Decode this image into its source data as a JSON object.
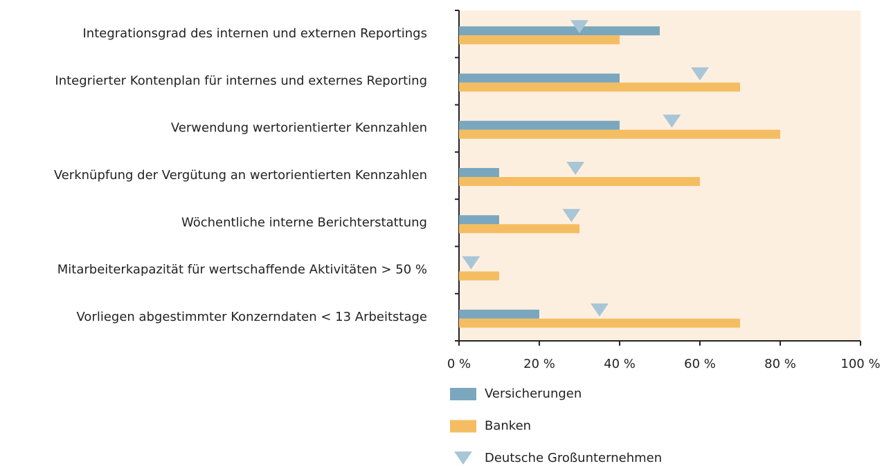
{
  "chart_data": {
    "type": "bar",
    "orientation": "horizontal",
    "categories": [
      "Integrationsgrad des internen und externen Reportings",
      "Integrierter Kontenplan für internes und externes Reporting",
      "Verwendung wertorientierter Kennzahlen",
      "Verknüpfung der Vergütung an wertorientierten Kennzahlen",
      "Wöchentliche interne Berichterstattung",
      "Mitarbeiterkapazität für wertschaffende Aktivitäten > 50 %",
      "Vorliegen abgestimmter Konzerndaten < 13 Arbeitstage"
    ],
    "series": [
      {
        "name": "Versicherungen",
        "type": "bar",
        "color": "#7aa7bd",
        "values": [
          50,
          40,
          40,
          10,
          10,
          0,
          20
        ]
      },
      {
        "name": "Banken",
        "type": "bar",
        "color": "#f5bd62",
        "values": [
          40,
          70,
          80,
          60,
          30,
          10,
          70
        ]
      },
      {
        "name": "Deutsche Großunternehmen",
        "type": "triangle",
        "color": "#a9c6d7",
        "values": [
          30,
          60,
          53,
          29,
          28,
          3,
          35
        ]
      }
    ],
    "xlim": [
      0,
      100
    ],
    "xticks": [
      {
        "value": 0,
        "label": "0 %"
      },
      {
        "value": 20,
        "label": "20 %"
      },
      {
        "value": 40,
        "label": "40 %"
      },
      {
        "value": 60,
        "label": "60 %"
      },
      {
        "value": 80,
        "label": "80 %"
      },
      {
        "value": 100,
        "label": "100 %"
      }
    ],
    "plot_background": "#fdefe0"
  }
}
